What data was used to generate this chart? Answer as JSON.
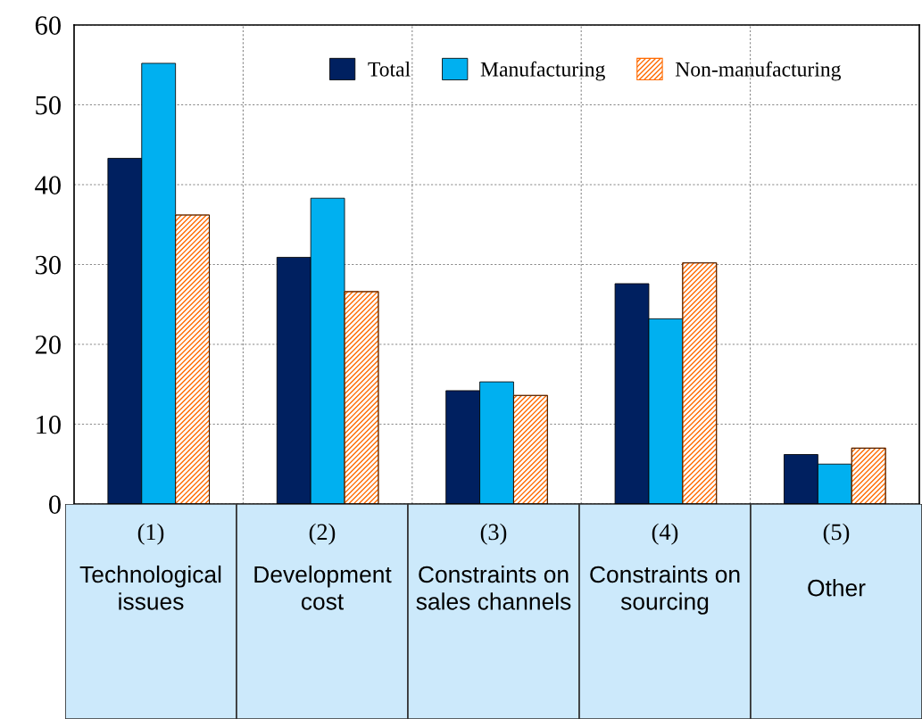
{
  "chart_data": {
    "type": "bar",
    "categories": [
      "(1)\nTechnological\nissues",
      "(2)\nDevelopment\ncost",
      "(3)\nConstraints on\nsales channels",
      "(4)\nConstraints on\nsourcing",
      "(5)\nOther"
    ],
    "series": [
      {
        "name": "Total",
        "color": "#002060",
        "values": [
          43.3,
          30.9,
          14.2,
          27.6,
          6.2
        ]
      },
      {
        "name": "Manufacturing",
        "color": "#00b0f0",
        "values": [
          55.2,
          38.3,
          15.3,
          23.2,
          5.0
        ]
      },
      {
        "name": "Non-manufacturing",
        "color": "#ff6a00",
        "values": [
          36.2,
          26.6,
          13.6,
          30.2,
          7.0
        ]
      }
    ],
    "ylim": [
      0,
      60
    ],
    "yticks": [
      0,
      10,
      20,
      30,
      40,
      50,
      60
    ],
    "grid": true,
    "legend": "top right"
  }
}
